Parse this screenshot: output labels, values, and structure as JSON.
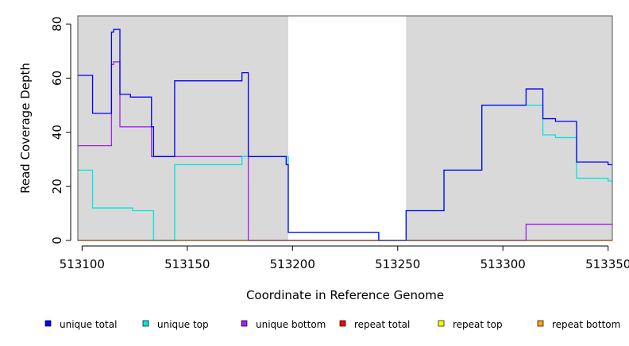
{
  "chart_data": {
    "type": "line",
    "title": "",
    "xlabel": "Coordinate in Reference Genome",
    "ylabel": "Read Coverage Depth",
    "xlim": [
      513098,
      513352
    ],
    "ylim": [
      0,
      83
    ],
    "x_ticks": [
      513100,
      513150,
      513200,
      513250,
      513300,
      513350
    ],
    "x_tick_labels": [
      "513100",
      "513150",
      "513200",
      "513250",
      "513300",
      "513350"
    ],
    "y_ticks": [
      0,
      20,
      40,
      60,
      80
    ],
    "y_tick_labels": [
      "0",
      "20",
      "40",
      "60",
      "80"
    ],
    "shaded_regions": [
      [
        513098,
        513198
      ],
      [
        513254,
        513352
      ]
    ],
    "shade_color": "#d9d9d9",
    "legend_position": "bottom",
    "series": [
      {
        "name": "unique total",
        "color": "#0000ff",
        "points": [
          [
            513098,
            61
          ],
          [
            513105,
            61
          ],
          [
            513105,
            47
          ],
          [
            513114,
            47
          ],
          [
            513114,
            77
          ],
          [
            513115,
            77
          ],
          [
            513115,
            78
          ],
          [
            513118,
            78
          ],
          [
            513118,
            54
          ],
          [
            513123,
            54
          ],
          [
            513123,
            53
          ],
          [
            513133,
            53
          ],
          [
            513133,
            42
          ],
          [
            513134,
            42
          ],
          [
            513134,
            31
          ],
          [
            513144,
            31
          ],
          [
            513144,
            59
          ],
          [
            513176,
            59
          ],
          [
            513176,
            62
          ],
          [
            513179,
            62
          ],
          [
            513179,
            31
          ],
          [
            513197,
            31
          ],
          [
            513197,
            28
          ],
          [
            513198,
            28
          ],
          [
            513198,
            3
          ],
          [
            513241,
            3
          ],
          [
            513241,
            0
          ],
          [
            513254,
            0
          ],
          [
            513254,
            11
          ],
          [
            513272,
            11
          ],
          [
            513272,
            26
          ],
          [
            513290,
            26
          ],
          [
            513290,
            50
          ],
          [
            513311,
            50
          ],
          [
            513311,
            56
          ],
          [
            513319,
            56
          ],
          [
            513319,
            45
          ],
          [
            513325,
            45
          ],
          [
            513325,
            44
          ],
          [
            513335,
            44
          ],
          [
            513335,
            29
          ],
          [
            513350,
            29
          ],
          [
            513350,
            28
          ],
          [
            513352,
            28
          ]
        ]
      },
      {
        "name": "unique top",
        "color": "#00e5e5",
        "points": [
          [
            513098,
            26
          ],
          [
            513105,
            26
          ],
          [
            513105,
            12
          ],
          [
            513124,
            12
          ],
          [
            513124,
            11
          ],
          [
            513134,
            11
          ],
          [
            513134,
            0
          ],
          [
            513144,
            0
          ],
          [
            513144,
            28
          ],
          [
            513176,
            28
          ],
          [
            513176,
            31
          ],
          [
            513198,
            31
          ],
          [
            513198,
            3
          ],
          [
            513241,
            3
          ],
          [
            513241,
            0
          ],
          [
            513254,
            0
          ],
          [
            513254,
            11
          ],
          [
            513272,
            11
          ],
          [
            513272,
            26
          ],
          [
            513290,
            26
          ],
          [
            513290,
            50
          ],
          [
            513319,
            50
          ],
          [
            513319,
            39
          ],
          [
            513325,
            39
          ],
          [
            513325,
            38
          ],
          [
            513335,
            38
          ],
          [
            513335,
            23
          ],
          [
            513350,
            23
          ],
          [
            513350,
            22
          ],
          [
            513352,
            22
          ]
        ]
      },
      {
        "name": "unique bottom",
        "color": "#a020f0",
        "points": [
          [
            513098,
            35
          ],
          [
            513114,
            35
          ],
          [
            513114,
            65
          ],
          [
            513115,
            65
          ],
          [
            513115,
            66
          ],
          [
            513118,
            66
          ],
          [
            513118,
            42
          ],
          [
            513133,
            42
          ],
          [
            513133,
            31
          ],
          [
            513179,
            31
          ],
          [
            513179,
            0
          ],
          [
            513311,
            0
          ],
          [
            513311,
            6
          ],
          [
            513352,
            6
          ]
        ]
      },
      {
        "name": "repeat total",
        "color": "#ff0000",
        "points": [
          [
            513098,
            0
          ],
          [
            513352,
            0
          ]
        ]
      },
      {
        "name": "repeat top",
        "color": "#ffff00",
        "points": [
          [
            513098,
            0
          ],
          [
            513352,
            0
          ]
        ]
      },
      {
        "name": "repeat bottom",
        "color": "#ffa500",
        "points": [
          [
            513098,
            0
          ],
          [
            513352,
            0
          ]
        ]
      }
    ]
  }
}
